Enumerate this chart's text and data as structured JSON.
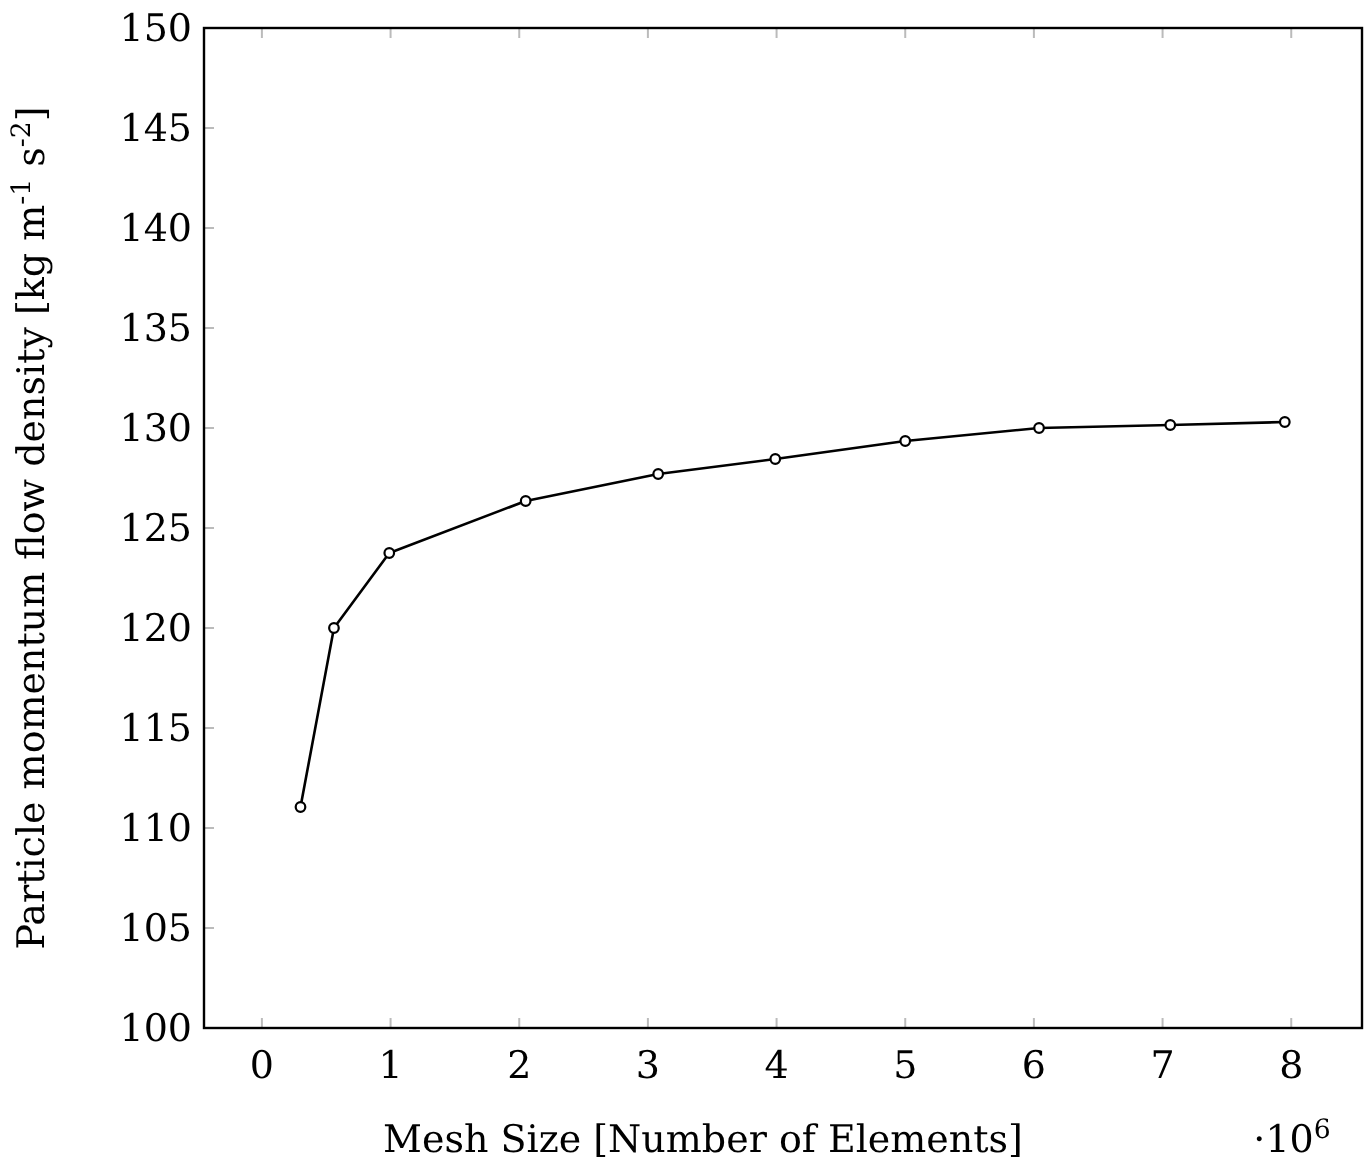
{
  "chart_data": {
    "type": "line",
    "xlabel": "Mesh Size [Number of Elements]",
    "ylabel": "Particle momentum flow density [kg m$^{-1}$ s$^{-2}$]",
    "annotations": [
      "·10$^{6}$"
    ],
    "series": [
      {
        "color": "#000000",
        "x": [
          0.3,
          0.56,
          0.99,
          2.05,
          3.08,
          3.99,
          5.0,
          6.04,
          7.06,
          7.95
        ],
        "values": [
          111.05,
          120.0,
          123.75,
          126.35,
          127.7,
          128.45,
          129.35,
          130.0,
          130.15,
          130.3
        ]
      }
    ],
    "xlim": [
      -0.45,
      8.55
    ],
    "ylim": [
      100,
      150
    ],
    "xticks": [
      0,
      1,
      2,
      3,
      4,
      5,
      6,
      7,
      8
    ],
    "yticks": [
      100,
      105,
      110,
      115,
      120,
      125,
      130,
      135,
      140,
      145,
      150
    ],
    "grid": false,
    "marker": "circle",
    "line_style": "solid"
  }
}
